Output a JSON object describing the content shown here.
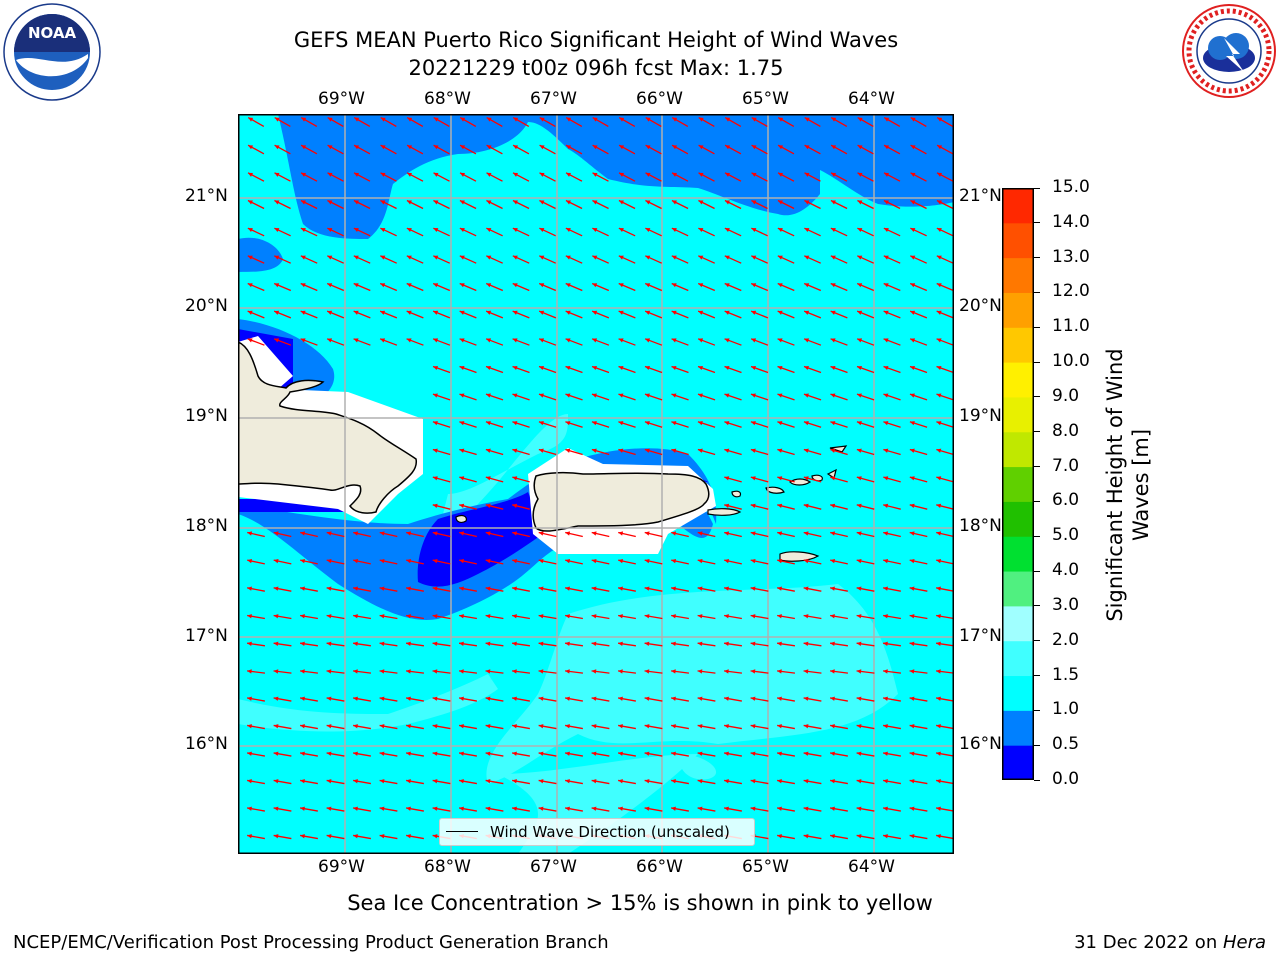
{
  "header": {
    "title_line1": "GEFS MEAN Puerto Rico Significant Height of Wind Waves",
    "title_line2": "20221229 t00z 096h fcst   Max: 1.75"
  },
  "logos": {
    "left": {
      "name": "NOAA",
      "text": "NOAA",
      "ring_text": "NATIONAL OCEANIC AND ATMOSPHERIC ADMINISTRATION · U.S. DEPARTMENT OF COMMERCE"
    },
    "right": {
      "name": "National Weather Service",
      "ring_text": "NATIONAL WEATHER SERVICE"
    }
  },
  "map": {
    "lon_labels": [
      "69°W",
      "68°W",
      "67°W",
      "66°W",
      "65°W",
      "64°W"
    ],
    "lat_labels": [
      "21°N",
      "20°N",
      "19°N",
      "18°N",
      "17°N",
      "16°N"
    ],
    "legend_label": "Wind Wave Direction (unscaled)",
    "arrow_color": "#ff0000",
    "land_color": "#efecdc",
    "field_colors": {
      "dark_blue": "#0000ff",
      "mid_blue": "#0080ff",
      "cyan": "#00ffff",
      "light_cyan": "#40ffff"
    }
  },
  "colorbar": {
    "label": "Significant Height of Wind Waves [m]",
    "label_line1": "Significant Height of Wind",
    "label_line2": "Waves [m]",
    "ticks": [
      "15.0",
      "14.0",
      "13.0",
      "12.0",
      "11.0",
      "10.0",
      "9.0",
      "8.0",
      "7.0",
      "6.0",
      "5.0",
      "4.0",
      "3.0",
      "2.0",
      "1.5",
      "1.0",
      "0.5",
      "0.0"
    ],
    "colors_bottom_to_top": [
      "#0000ff",
      "#0080ff",
      "#00ffff",
      "#40ffff",
      "#a0ffff",
      "#50f080",
      "#00e030",
      "#20c000",
      "#60d000",
      "#c0e800",
      "#e8f000",
      "#fff000",
      "#ffc800",
      "#ffa000",
      "#ff7800",
      "#ff5000",
      "#ff2800"
    ]
  },
  "notes": {
    "sea_ice": "Sea Ice Concentration > 15% is shown in pink to yellow"
  },
  "footer": {
    "left": "NCEP/EMC/Verification Post Processing Product Generation Branch",
    "date": "31 Dec 2022 on ",
    "machine": "Hera"
  }
}
